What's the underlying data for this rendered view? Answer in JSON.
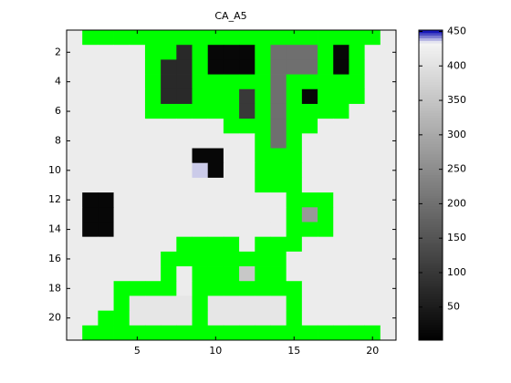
{
  "chart_data": {
    "type": "heatmap",
    "title": "CA_A5",
    "z": [
      [
        420,
        null,
        null,
        null,
        null,
        null,
        null,
        null,
        null,
        null,
        null,
        null,
        null,
        null,
        null,
        null,
        null,
        null,
        null,
        null,
        420
      ],
      [
        420,
        420,
        420,
        420,
        420,
        null,
        null,
        75,
        null,
        15,
        15,
        15,
        null,
        198,
        198,
        198,
        null,
        15,
        null,
        420,
        420
      ],
      [
        420,
        420,
        420,
        420,
        420,
        null,
        75,
        75,
        null,
        15,
        15,
        15,
        null,
        198,
        198,
        198,
        null,
        15,
        null,
        420,
        420
      ],
      [
        420,
        420,
        420,
        420,
        420,
        null,
        75,
        75,
        null,
        null,
        null,
        null,
        null,
        198,
        null,
        null,
        null,
        null,
        null,
        420,
        420
      ],
      [
        420,
        420,
        420,
        420,
        420,
        null,
        75,
        75,
        null,
        null,
        null,
        103,
        null,
        198,
        null,
        15,
        null,
        null,
        null,
        420,
        420
      ],
      [
        420,
        420,
        420,
        420,
        420,
        null,
        null,
        null,
        null,
        null,
        null,
        103,
        null,
        198,
        null,
        null,
        null,
        null,
        420,
        420,
        420
      ],
      [
        420,
        420,
        420,
        420,
        420,
        420,
        420,
        420,
        420,
        420,
        null,
        null,
        null,
        198,
        null,
        null,
        420,
        420,
        420,
        420,
        420
      ],
      [
        420,
        420,
        420,
        420,
        420,
        420,
        420,
        420,
        420,
        420,
        420,
        420,
        null,
        198,
        null,
        420,
        420,
        420,
        420,
        420,
        420
      ],
      [
        420,
        420,
        420,
        420,
        420,
        420,
        420,
        420,
        15,
        15,
        420,
        420,
        null,
        null,
        null,
        420,
        420,
        420,
        420,
        420,
        420
      ],
      [
        420,
        420,
        420,
        420,
        420,
        420,
        420,
        420,
        437,
        15,
        420,
        420,
        null,
        null,
        null,
        420,
        420,
        420,
        420,
        420,
        420
      ],
      [
        420,
        420,
        420,
        420,
        420,
        420,
        420,
        420,
        420,
        420,
        420,
        420,
        null,
        null,
        null,
        420,
        420,
        420,
        420,
        420,
        420
      ],
      [
        420,
        15,
        15,
        420,
        420,
        420,
        420,
        420,
        420,
        420,
        420,
        420,
        420,
        420,
        null,
        null,
        null,
        420,
        420,
        420,
        420
      ],
      [
        420,
        15,
        15,
        420,
        420,
        420,
        420,
        420,
        420,
        420,
        420,
        420,
        420,
        420,
        null,
        271,
        null,
        420,
        420,
        420,
        420
      ],
      [
        420,
        15,
        15,
        420,
        420,
        420,
        420,
        420,
        420,
        420,
        420,
        420,
        420,
        420,
        null,
        null,
        null,
        420,
        420,
        420,
        420
      ],
      [
        420,
        420,
        420,
        420,
        420,
        420,
        420,
        null,
        null,
        null,
        null,
        420,
        null,
        null,
        null,
        420,
        420,
        420,
        420,
        420,
        420
      ],
      [
        420,
        420,
        420,
        420,
        420,
        420,
        null,
        null,
        null,
        null,
        null,
        null,
        null,
        null,
        420,
        420,
        420,
        420,
        420,
        420,
        420
      ],
      [
        420,
        420,
        420,
        420,
        420,
        420,
        null,
        420,
        null,
        null,
        null,
        354,
        null,
        null,
        420,
        420,
        420,
        420,
        420,
        420,
        420
      ],
      [
        420,
        420,
        420,
        null,
        null,
        null,
        null,
        420,
        null,
        null,
        null,
        null,
        null,
        null,
        null,
        420,
        420,
        420,
        420,
        420,
        420
      ],
      [
        420,
        420,
        420,
        null,
        410,
        410,
        410,
        410,
        null,
        410,
        410,
        410,
        410,
        410,
        null,
        420,
        420,
        420,
        420,
        420,
        420
      ],
      [
        420,
        420,
        null,
        null,
        410,
        410,
        410,
        410,
        null,
        410,
        410,
        410,
        410,
        410,
        null,
        420,
        420,
        420,
        420,
        420,
        420
      ],
      [
        420,
        null,
        null,
        null,
        null,
        null,
        null,
        null,
        null,
        null,
        null,
        null,
        null,
        null,
        null,
        null,
        null,
        null,
        null,
        null,
        420
      ]
    ],
    "xlim": [
      0.5,
      21.5
    ],
    "ylim": [
      0.5,
      21.5
    ],
    "xticks": [
      5,
      10,
      15,
      20
    ],
    "yticks": [
      2,
      4,
      6,
      8,
      10,
      12,
      14,
      16,
      18,
      20
    ],
    "clim": [
      2,
      452
    ],
    "colorbar_ticks": [
      50,
      100,
      150,
      200,
      250,
      300,
      350,
      400,
      450
    ],
    "colormap": {
      "colors": [
        "#000000",
        "#f4f4f4",
        "#0000b0"
      ],
      "stops": [
        0,
        0.96,
        1
      ]
    },
    "nan_color": "#00ff00",
    "y_reversed": true
  }
}
